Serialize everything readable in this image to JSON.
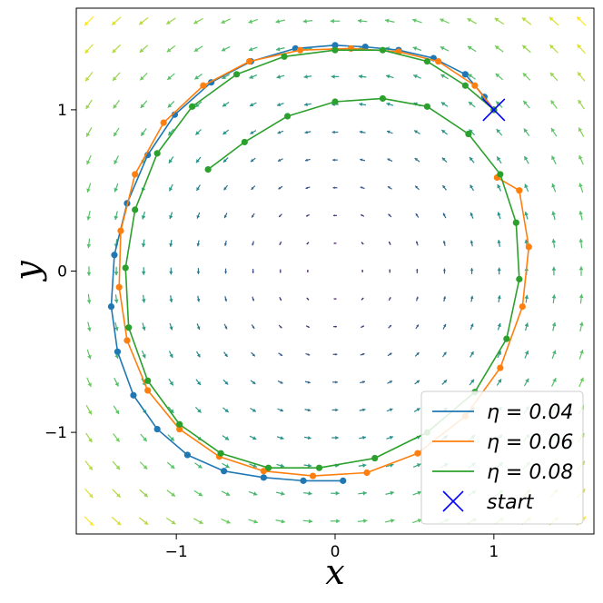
{
  "chart_data": {
    "type": "line",
    "xlabel": "x",
    "ylabel": "y",
    "xlim": [
      -1.63,
      1.63
    ],
    "ylim": [
      -1.63,
      1.63
    ],
    "grid": false,
    "legend_position": "bottom-right",
    "x_ticks": [
      {
        "value": -1,
        "label": "−1"
      },
      {
        "value": 0,
        "label": "0"
      },
      {
        "value": 1,
        "label": "1"
      }
    ],
    "y_ticks": [
      {
        "value": -1,
        "label": "−1"
      },
      {
        "value": 0,
        "label": "0"
      },
      {
        "value": 1,
        "label": "1"
      }
    ],
    "vector_field": {
      "description": "rotational quiver field, colour increasing with radius (viridis)",
      "grid_range": [
        -1.55,
        1.55
      ],
      "grid_count": 19,
      "colormap": [
        "#440154",
        "#3b528b",
        "#21918c",
        "#5ec962",
        "#fde725"
      ]
    },
    "start": {
      "x": 1.0,
      "y": 1.0,
      "label": "start",
      "color": "#0000ff"
    },
    "series": [
      {
        "name": "η = 0.04",
        "color": "#1f77b4",
        "x": [
          1.0,
          0.94,
          0.82,
          0.62,
          0.4,
          0.19,
          0.0,
          -0.25,
          -0.53,
          -0.78,
          -1.01,
          -1.18,
          -1.31,
          -1.39,
          -1.41,
          -1.37,
          -1.27,
          -1.12,
          -0.93,
          -0.7,
          -0.45,
          -0.2,
          0.05
        ],
        "y": [
          1.0,
          1.08,
          1.22,
          1.32,
          1.37,
          1.39,
          1.4,
          1.38,
          1.3,
          1.17,
          0.97,
          0.72,
          0.42,
          0.1,
          -0.22,
          -0.5,
          -0.77,
          -0.98,
          -1.14,
          -1.24,
          -1.28,
          -1.3,
          -1.3
        ]
      },
      {
        "name": "η = 0.06",
        "color": "#ff7f0e",
        "x": [
          1.0,
          0.88,
          0.65,
          0.4,
          0.1,
          -0.22,
          -0.54,
          -0.83,
          -1.08,
          -1.26,
          -1.35,
          -1.36,
          -1.31,
          -1.18,
          -0.98,
          -0.73,
          -0.45,
          -0.14,
          0.2,
          0.52,
          0.82,
          1.04,
          1.18,
          1.22,
          1.16,
          1.02
        ],
        "y": [
          1.0,
          1.15,
          1.3,
          1.36,
          1.38,
          1.37,
          1.3,
          1.15,
          0.92,
          0.6,
          0.25,
          -0.1,
          -0.43,
          -0.74,
          -0.98,
          -1.15,
          -1.24,
          -1.27,
          -1.25,
          -1.13,
          -0.9,
          -0.6,
          -0.22,
          0.15,
          0.5,
          0.58
        ]
      },
      {
        "name": "η = 0.08",
        "color": "#2ca02c",
        "x": [
          1.0,
          0.82,
          0.58,
          0.3,
          0.0,
          -0.32,
          -0.62,
          -0.9,
          -1.12,
          -1.26,
          -1.32,
          -1.3,
          -1.18,
          -0.98,
          -0.72,
          -0.42,
          -0.1,
          0.25,
          0.58,
          0.88,
          1.08,
          1.16,
          1.14,
          1.04,
          0.84,
          0.58,
          0.3,
          0.0,
          -0.3,
          -0.57,
          -0.8
        ],
        "y": [
          1.0,
          1.15,
          1.3,
          1.37,
          1.37,
          1.33,
          1.22,
          1.02,
          0.73,
          0.38,
          0.02,
          -0.35,
          -0.68,
          -0.95,
          -1.13,
          -1.22,
          -1.22,
          -1.16,
          -1.0,
          -0.75,
          -0.42,
          -0.05,
          0.3,
          0.6,
          0.85,
          1.02,
          1.07,
          1.05,
          0.96,
          0.8,
          0.63
        ]
      }
    ],
    "legend": [
      {
        "label": "η = 0.04",
        "color": "#1f77b4",
        "marker": "line"
      },
      {
        "label": "η = 0.06",
        "color": "#ff7f0e",
        "marker": "line"
      },
      {
        "label": "η = 0.08",
        "color": "#2ca02c",
        "marker": "line"
      },
      {
        "label": "start",
        "color": "#0000ff",
        "marker": "x"
      }
    ]
  }
}
